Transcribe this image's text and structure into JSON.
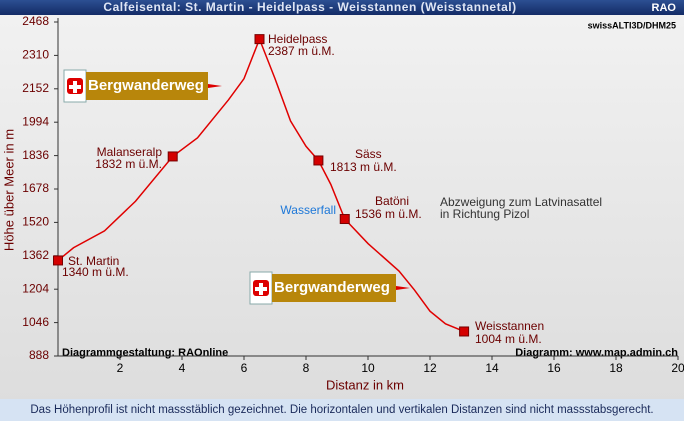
{
  "chart_data": {
    "type": "line",
    "title": "Calfeisental: St. Martin - Heidelpass -  Weisstannen (Weisstannetal)",
    "corner_label": "RAO",
    "source_label": "swissALTI3D/DHM25",
    "x_label": "Distanz in km",
    "y_label": "Höhe über Meer in m",
    "credit_left": "Diagrammgestaltung: RAOnline",
    "credit_right": "Diagramm: www.map.admin.ch",
    "footer": "Das Höhenprofil ist nicht massstäblich gezeichnet. Die horizontalen und vertikalen Distanzen sind nicht massstabsgerecht.",
    "xlim": [
      0,
      20
    ],
    "xticks": [
      2,
      4,
      6,
      8,
      10,
      12,
      14,
      16,
      18,
      20
    ],
    "ylim": [
      888,
      2468
    ],
    "yticks": [
      888,
      1046,
      1204,
      1362,
      1520,
      1678,
      1836,
      1994,
      2152,
      2310,
      2468
    ],
    "line": {
      "color": "#e00000",
      "x": [
        0,
        0.5,
        1.5,
        2.5,
        3.7,
        4.5,
        5,
        5.5,
        6,
        6.5,
        7,
        7.5,
        8,
        8.4,
        8.8,
        9.25,
        10,
        11,
        11.5,
        12,
        12.5,
        13.1
      ],
      "values": [
        1340,
        1400,
        1480,
        1620,
        1832,
        1920,
        2010,
        2100,
        2200,
        2387,
        2200,
        2000,
        1880,
        1813,
        1700,
        1536,
        1420,
        1290,
        1200,
        1100,
        1040,
        1004
      ]
    },
    "points": {
      "color": "#d40000",
      "labels": [
        "St. Martin",
        "Malanseralp",
        "Heidelpass",
        "Säss",
        "Batöni",
        "Weisstannen"
      ],
      "x": [
        0,
        3.7,
        6.5,
        8.4,
        9.25,
        13.1
      ],
      "values": [
        1340,
        1832,
        2387,
        1813,
        1536,
        1004
      ],
      "value_labels": [
        "1340 m ü.M.",
        "1832 m ü.M.",
        "2387 m ü.M.",
        "1813 m ü.M.",
        "1536 m ü.M.",
        "1004 m ü.M."
      ]
    },
    "annotations": [
      "Wasserfall",
      "Abzweigung zum Latvinasattel",
      "in Richtung Pizol"
    ],
    "signs": [
      "Bergwanderweg",
      "Bergwanderweg"
    ]
  }
}
